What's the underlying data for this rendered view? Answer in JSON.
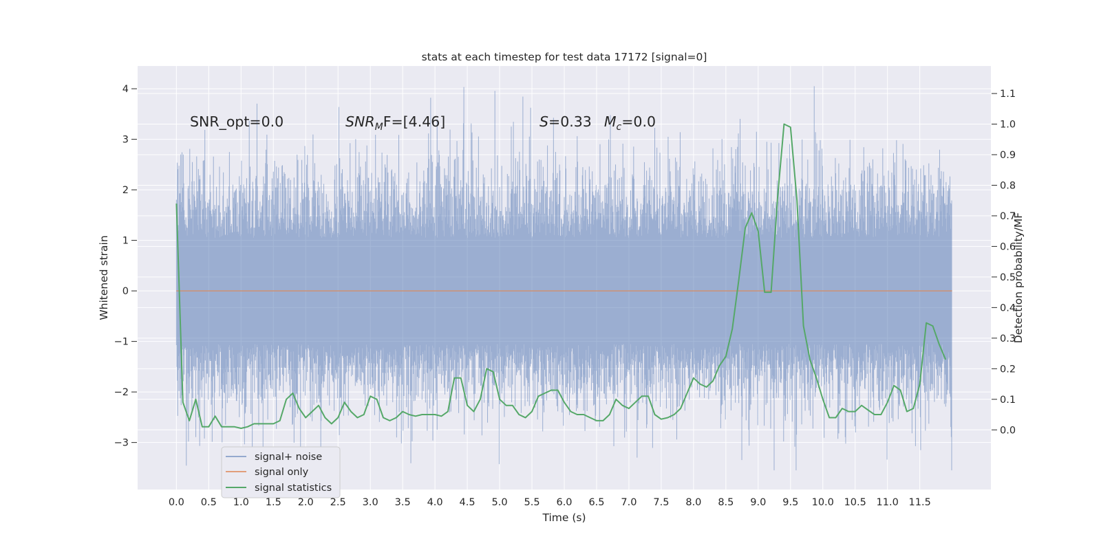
{
  "chart_data": {
    "type": "line",
    "title": "stats at each timestep for test data 17172 [signal=0]",
    "xlabel": "Time (s)",
    "ylabel_left": "Whitened strain",
    "ylabel_right": "Detection probability/MF",
    "xlim": [
      -0.6,
      12.6
    ],
    "ylim_left": [
      -3.93,
      4.45
    ],
    "ylim_right": [
      -0.195,
      1.19
    ],
    "grid": true,
    "background": "#eaeaf2",
    "x_ticks": [
      "0.0",
      "0.5",
      "1.0",
      "1.5",
      "2.0",
      "2.5",
      "3.0",
      "3.5",
      "4.0",
      "4.5",
      "5.0",
      "5.5",
      "6.0",
      "6.5",
      "7.0",
      "7.5",
      "8.0",
      "8.5",
      "9.0",
      "9.5",
      "10.0",
      "10.5",
      "11.0",
      "11.5"
    ],
    "y_ticks_left": [
      "−3",
      "−2",
      "−1",
      "0",
      "1",
      "2",
      "3",
      "4"
    ],
    "y_ticks_right": [
      "0.0",
      "0.1",
      "0.2",
      "0.3",
      "0.4",
      "0.5",
      "0.6",
      "0.7",
      "0.8",
      "0.9",
      "1.0",
      "1.1"
    ],
    "annotations": {
      "snr_opt": "SNR_opt=0.0",
      "snr_mf_pre": "SNR",
      "snr_mf_sub": "M",
      "snr_mf_post": "F=[4.46]",
      "s_sym": "S",
      "s_val": "=0.33",
      "mc_sym": "M",
      "mc_sub": "c",
      "mc_val": "=0.0"
    },
    "legend": {
      "placement": "lower-left",
      "entries": [
        "signal+ noise",
        "signal only",
        "signal statistics"
      ]
    },
    "series": [
      {
        "name": "signal+ noise",
        "color": "#4c72b0",
        "axis": "left",
        "x_range": [
          0.0,
          12.0
        ],
        "typical_band": [
          -1.5,
          1.5
        ],
        "spike_max": 4.1,
        "spike_min": -3.55
      },
      {
        "name": "signal only",
        "color": "#dd8452",
        "axis": "left",
        "x": [
          0.0,
          12.0
        ],
        "y": [
          0.0,
          0.0
        ]
      },
      {
        "name": "signal statistics",
        "color": "#55a868",
        "axis": "right",
        "x": [
          0.0,
          0.1,
          0.2,
          0.3,
          0.4,
          0.5,
          0.6,
          0.7,
          0.8,
          0.9,
          1.0,
          1.1,
          1.2,
          1.3,
          1.4,
          1.5,
          1.6,
          1.7,
          1.8,
          1.9,
          2.0,
          2.1,
          2.2,
          2.3,
          2.4,
          2.5,
          2.6,
          2.7,
          2.8,
          2.9,
          3.0,
          3.1,
          3.2,
          3.3,
          3.4,
          3.5,
          3.6,
          3.7,
          3.8,
          3.9,
          4.0,
          4.1,
          4.2,
          4.3,
          4.4,
          4.5,
          4.6,
          4.7,
          4.8,
          4.9,
          5.0,
          5.1,
          5.2,
          5.3,
          5.4,
          5.5,
          5.6,
          5.7,
          5.8,
          5.9,
          6.0,
          6.1,
          6.2,
          6.3,
          6.4,
          6.5,
          6.6,
          6.7,
          6.8,
          6.9,
          7.0,
          7.1,
          7.2,
          7.3,
          7.4,
          7.5,
          7.6,
          7.7,
          7.8,
          7.9,
          8.0,
          8.1,
          8.2,
          8.3,
          8.4,
          8.5,
          8.6,
          8.7,
          8.8,
          8.9,
          9.0,
          9.1,
          9.2,
          9.3,
          9.4,
          9.5,
          9.6,
          9.7,
          9.8,
          9.9,
          10.0,
          10.1,
          10.2,
          10.3,
          10.4,
          10.5,
          10.6,
          10.7,
          10.8,
          10.9,
          11.0,
          11.1,
          11.2,
          11.3,
          11.4,
          11.5,
          11.6,
          11.7,
          11.8,
          11.9
        ],
        "y": [
          0.74,
          0.09,
          0.03,
          0.1,
          0.01,
          0.01,
          0.045,
          0.01,
          0.01,
          0.01,
          0.005,
          0.01,
          0.02,
          0.02,
          0.02,
          0.02,
          0.03,
          0.1,
          0.12,
          0.07,
          0.04,
          0.06,
          0.08,
          0.04,
          0.02,
          0.04,
          0.09,
          0.06,
          0.04,
          0.05,
          0.11,
          0.1,
          0.04,
          0.03,
          0.04,
          0.06,
          0.05,
          0.045,
          0.05,
          0.05,
          0.05,
          0.045,
          0.06,
          0.17,
          0.17,
          0.08,
          0.06,
          0.1,
          0.2,
          0.19,
          0.1,
          0.08,
          0.08,
          0.05,
          0.04,
          0.06,
          0.11,
          0.12,
          0.13,
          0.13,
          0.09,
          0.06,
          0.05,
          0.05,
          0.04,
          0.03,
          0.03,
          0.05,
          0.1,
          0.08,
          0.07,
          0.09,
          0.11,
          0.11,
          0.05,
          0.035,
          0.04,
          0.05,
          0.07,
          0.12,
          0.17,
          0.15,
          0.14,
          0.16,
          0.21,
          0.24,
          0.33,
          0.49,
          0.66,
          0.71,
          0.65,
          0.45,
          0.45,
          0.76,
          1.0,
          0.99,
          0.75,
          0.34,
          0.23,
          0.17,
          0.1,
          0.04,
          0.04,
          0.07,
          0.06,
          0.06,
          0.08,
          0.065,
          0.05,
          0.05,
          0.09,
          0.145,
          0.13,
          0.06,
          0.07,
          0.15,
          0.35,
          0.34,
          0.28,
          0.23
        ]
      }
    ]
  }
}
